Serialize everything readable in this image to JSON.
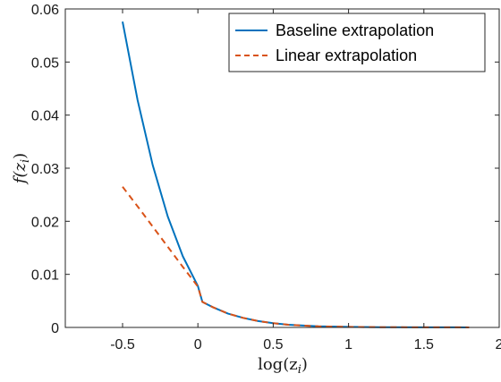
{
  "chart_data": {
    "type": "line",
    "xlabel": "log(z_i)",
    "ylabel": "f(z_i)",
    "xlim": [
      -0.88,
      2.0
    ],
    "ylim": [
      0,
      0.06
    ],
    "xticks": [
      -0.5,
      0,
      0.5,
      1,
      1.5,
      2
    ],
    "xtick_labels": [
      "-0.5",
      "0",
      "0.5",
      "1",
      "1.5",
      "2"
    ],
    "yticks": [
      0,
      0.01,
      0.02,
      0.03,
      0.04,
      0.05,
      0.06
    ],
    "ytick_labels": [
      "0",
      "0.01",
      "0.02",
      "0.03",
      "0.04",
      "0.05",
      "0.06"
    ],
    "grid": false,
    "legend_position": "top-right",
    "series": [
      {
        "name": "Baseline extrapolation",
        "style": "solid",
        "color": "#0072BD",
        "x": [
          -0.5,
          -0.4,
          -0.3,
          -0.2,
          -0.1,
          0.0,
          0.03,
          0.1,
          0.2,
          0.3,
          0.4,
          0.5,
          0.6,
          0.8,
          1.0,
          1.2,
          1.5,
          1.8
        ],
        "y": [
          0.0576,
          0.0428,
          0.0306,
          0.0209,
          0.0134,
          0.0078,
          0.0048,
          0.0038,
          0.0026,
          0.0018,
          0.0012,
          0.0008,
          0.0005,
          0.0002,
          0.0001,
          5e-05,
          2e-05,
          1e-05
        ]
      },
      {
        "name": "Linear extrapolation",
        "style": "dashed",
        "color": "#D95319",
        "x": [
          -0.5,
          -0.4,
          -0.3,
          -0.2,
          -0.1,
          0.0,
          0.03,
          0.1,
          0.2,
          0.3,
          0.4,
          0.5,
          0.6,
          0.8,
          1.0,
          1.2,
          1.5,
          1.8
        ],
        "y": [
          0.0265,
          0.0228,
          0.019,
          0.0152,
          0.0114,
          0.0077,
          0.0048,
          0.0038,
          0.0026,
          0.0018,
          0.0012,
          0.0008,
          0.0005,
          0.0002,
          0.0001,
          5e-05,
          2e-05,
          1e-05
        ]
      }
    ]
  }
}
